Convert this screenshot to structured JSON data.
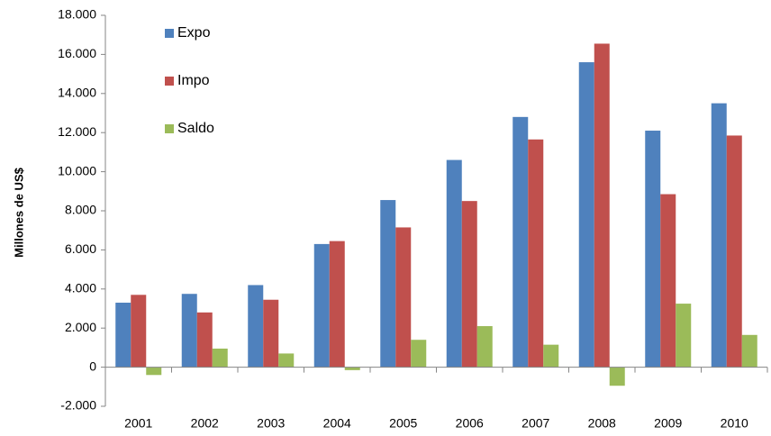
{
  "chart_data": {
    "type": "bar",
    "ylabel": "Millones de US$",
    "xlabel": "",
    "ylim": [
      -2000,
      18000
    ],
    "yticks": [
      -2000,
      0,
      2000,
      4000,
      6000,
      8000,
      10000,
      12000,
      14000,
      16000,
      18000
    ],
    "ytick_labels": [
      "-2.000",
      "0",
      "2.000",
      "4.000",
      "6.000",
      "8.000",
      "10.000",
      "12.000",
      "14.000",
      "16.000",
      "18.000"
    ],
    "categories": [
      "2001",
      "2002",
      "2003",
      "2004",
      "2005",
      "2006",
      "2007",
      "2008",
      "2009",
      "2010"
    ],
    "legend_position": "top-left",
    "grid": false,
    "series": [
      {
        "name": "Expo",
        "color": "#4F81BD",
        "values": [
          3300,
          3750,
          4200,
          6300,
          8550,
          10600,
          12800,
          15600,
          12100,
          13500
        ]
      },
      {
        "name": "Impo",
        "color": "#C0504D",
        "values": [
          3700,
          2800,
          3450,
          6450,
          7150,
          8500,
          11650,
          16550,
          8850,
          11850
        ]
      },
      {
        "name": "Saldo",
        "color": "#9BBB59",
        "values": [
          -400,
          950,
          700,
          -150,
          1400,
          2100,
          1150,
          -950,
          3250,
          1650
        ]
      }
    ]
  }
}
